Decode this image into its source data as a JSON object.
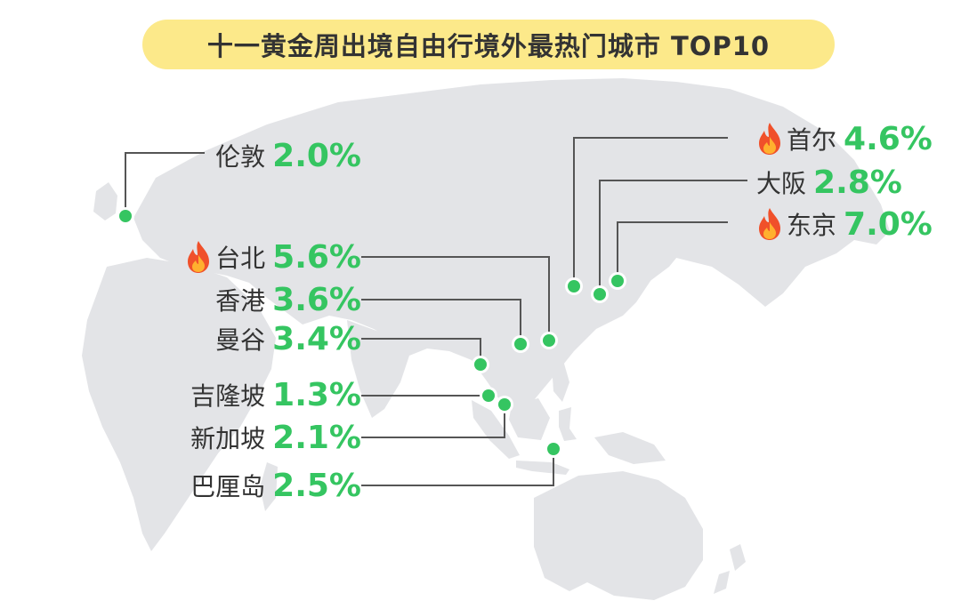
{
  "title": "十一黄金周出境自由行境外最热门城市 TOP10",
  "colors": {
    "map_land": "#e3e4e7",
    "accent_green": "#35c561",
    "title_background": "#fce98a",
    "leader_line": "#555555",
    "label_text": "#333333",
    "hot_icon": "#f0502a"
  },
  "cities": [
    {
      "name": "伦敦",
      "percent": "2.0%",
      "hot": false
    },
    {
      "name": "首尔",
      "percent": "4.6%",
      "hot": true
    },
    {
      "name": "大阪",
      "percent": "2.8%",
      "hot": false
    },
    {
      "name": "东京",
      "percent": "7.0%",
      "hot": true
    },
    {
      "name": "台北",
      "percent": "5.6%",
      "hot": true
    },
    {
      "name": "香港",
      "percent": "3.6%",
      "hot": false
    },
    {
      "name": "曼谷",
      "percent": "3.4%",
      "hot": false
    },
    {
      "name": "吉隆坡",
      "percent": "1.3%",
      "hot": false
    },
    {
      "name": "新加坡",
      "percent": "2.1%",
      "hot": false
    },
    {
      "name": "巴厘岛",
      "percent": "2.5%",
      "hot": false
    }
  ]
}
